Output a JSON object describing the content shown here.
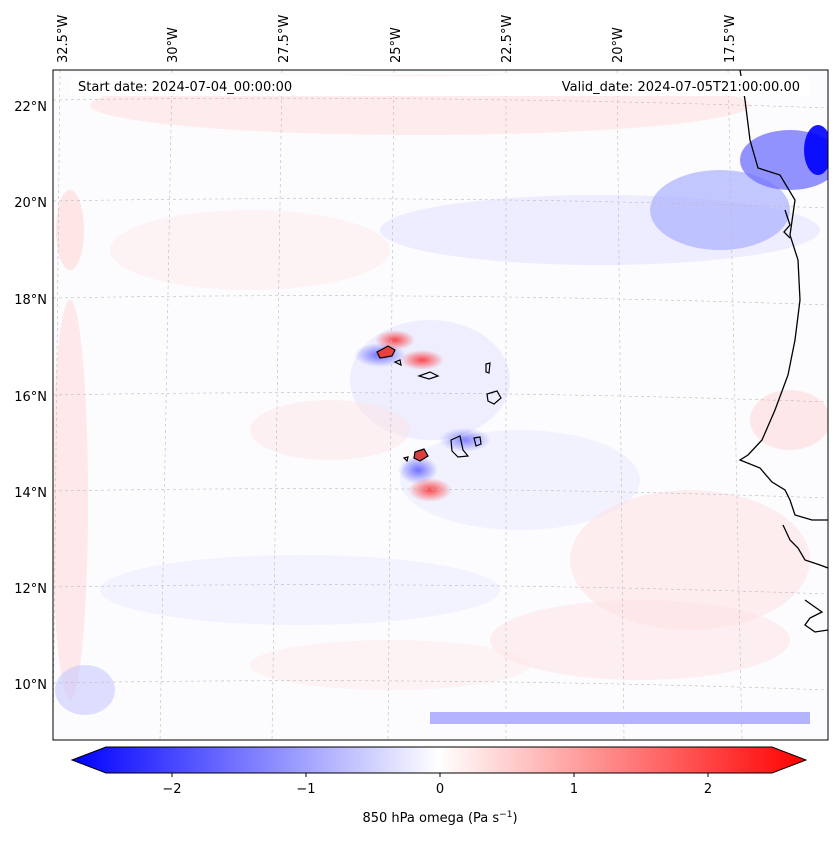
{
  "map": {
    "start_date": "Start date: 2024-07-04_00:00:00",
    "valid_date": "Valid_date: 2024-07-05T21:00:00.00",
    "lon_labels": [
      "32.5°W",
      "30°W",
      "27.5°W",
      "25°W",
      "22.5°W",
      "20°W",
      "17.5°W"
    ],
    "lat_labels": [
      "22°N",
      "20°N",
      "18°N",
      "16°N",
      "14°N",
      "12°N",
      "10°N"
    ],
    "lon_values": [
      -32.5,
      -30,
      -27.5,
      -25,
      -22.5,
      -20,
      -17.5
    ],
    "lat_values": [
      22,
      20,
      18,
      16,
      14,
      12,
      10
    ],
    "field": "850 hPa omega",
    "islands": [
      "Santo Antão",
      "São Vicente",
      "São Nicolau",
      "Sal",
      "Boa Vista",
      "Maio",
      "Santiago",
      "Fogo",
      "Brava"
    ]
  },
  "colorbar": {
    "ticks": [
      "−2",
      "−1",
      "0",
      "1",
      "2"
    ],
    "tick_values": [
      -2,
      -1,
      0,
      1,
      2
    ],
    "range": [
      -2.6,
      2.6
    ],
    "label_main": "850 hPa omega (Pa s",
    "label_sup": "−1",
    "label_end": ")",
    "colors": {
      "negative": "#0000ff",
      "zero": "#ffffff",
      "positive": "#ff0000"
    }
  }
}
